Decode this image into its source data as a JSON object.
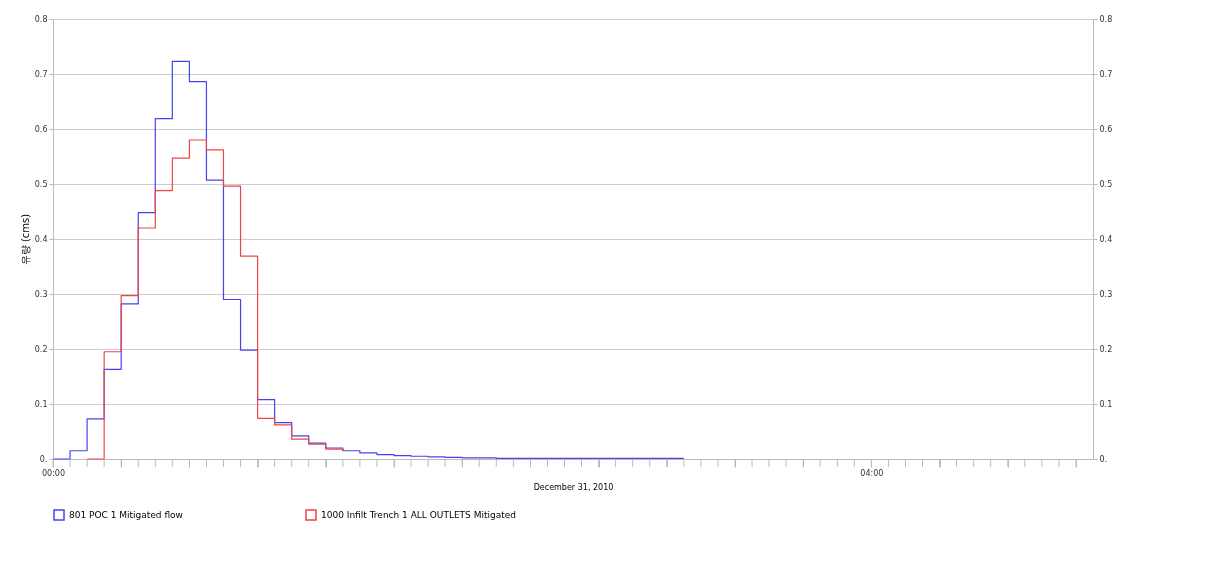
{
  "chart_data": {
    "type": "step",
    "xlabel": "December 31, 2010",
    "ylabel": "유량 (cms)",
    "xlim": [
      0,
      5.0833
    ],
    "xticks": [
      {
        "value": 0,
        "label": "00:00"
      },
      {
        "value": 0.0833,
        "label": null
      },
      {
        "value": 0.1667,
        "label": null
      },
      {
        "value": 0.25,
        "label": null
      },
      {
        "value": 0.3333,
        "label": null
      },
      {
        "value": 0.4167,
        "label": null
      },
      {
        "value": 0.5,
        "label": null
      },
      {
        "value": 0.5833,
        "label": null
      },
      {
        "value": 0.6667,
        "label": null
      },
      {
        "value": 0.75,
        "label": null
      },
      {
        "value": 0.8333,
        "label": null
      },
      {
        "value": 0.9167,
        "label": null
      },
      {
        "value": 1,
        "label": null
      },
      {
        "value": 1.0833,
        "label": null
      },
      {
        "value": 1.1667,
        "label": null
      },
      {
        "value": 1.25,
        "label": null
      },
      {
        "value": 1.3333,
        "label": null
      },
      {
        "value": 1.4167,
        "label": null
      },
      {
        "value": 1.5,
        "label": null
      },
      {
        "value": 1.5833,
        "label": null
      },
      {
        "value": 1.6667,
        "label": null
      },
      {
        "value": 1.75,
        "label": null
      },
      {
        "value": 1.8333,
        "label": null
      },
      {
        "value": 1.9167,
        "label": null
      },
      {
        "value": 2,
        "label": null
      },
      {
        "value": 2.0833,
        "label": null
      },
      {
        "value": 2.1667,
        "label": null
      },
      {
        "value": 2.25,
        "label": null
      },
      {
        "value": 2.3333,
        "label": null
      },
      {
        "value": 2.4167,
        "label": null
      },
      {
        "value": 2.5,
        "label": null
      },
      {
        "value": 2.5833,
        "label": null
      },
      {
        "value": 2.6667,
        "label": null
      },
      {
        "value": 2.75,
        "label": null
      },
      {
        "value": 2.8333,
        "label": null
      },
      {
        "value": 2.9167,
        "label": null
      },
      {
        "value": 3,
        "label": null
      },
      {
        "value": 3.0833,
        "label": null
      },
      {
        "value": 3.1667,
        "label": null
      },
      {
        "value": 3.25,
        "label": null
      },
      {
        "value": 3.3333,
        "label": null
      },
      {
        "value": 3.4167,
        "label": null
      },
      {
        "value": 3.5,
        "label": null
      },
      {
        "value": 3.5833,
        "label": null
      },
      {
        "value": 3.6667,
        "label": null
      },
      {
        "value": 3.75,
        "label": null
      },
      {
        "value": 3.8333,
        "label": null
      },
      {
        "value": 3.9167,
        "label": null
      },
      {
        "value": 4,
        "label": "04:00"
      },
      {
        "value": 4.0833,
        "label": null
      },
      {
        "value": 4.1667,
        "label": null
      },
      {
        "value": 4.25,
        "label": null
      },
      {
        "value": 4.3333,
        "label": null
      },
      {
        "value": 4.4167,
        "label": null
      },
      {
        "value": 4.5,
        "label": null
      },
      {
        "value": 4.5833,
        "label": null
      },
      {
        "value": 4.6667,
        "label": null
      },
      {
        "value": 4.75,
        "label": null
      },
      {
        "value": 4.8333,
        "label": null
      },
      {
        "value": 4.9167,
        "label": null
      },
      {
        "value": 5,
        "label": null
      }
    ],
    "ylim": [
      0,
      0.8
    ],
    "yticks": [
      {
        "value": 0,
        "label": "0."
      },
      0.1,
      0.2,
      0.3,
      0.4,
      0.5,
      0.6,
      0.7,
      0.8
    ],
    "y2lim": [
      0,
      0.8
    ],
    "y2ticks": [
      {
        "value": 0,
        "label": "0."
      },
      0.1,
      0.2,
      0.3,
      0.4,
      0.5,
      0.6,
      0.7,
      0.8
    ],
    "grid": "y",
    "legend": "bottom",
    "series": [
      {
        "name": "801 POC 1 Mitigated flow",
        "color": "#4444ee",
        "x": [
          0,
          0.0833,
          0.1667,
          0.25,
          0.3333,
          0.4167,
          0.5,
          0.5833,
          0.6667,
          0.75,
          0.8333,
          0.9167,
          1,
          1.0833,
          1.1667,
          1.25,
          1.3333,
          1.4167,
          1.5,
          1.5833,
          1.6667,
          1.75,
          1.8333,
          1.9167,
          2,
          2.0833,
          2.1667,
          2.25,
          2.3333,
          2.4167,
          2.5,
          2.5833,
          2.6667,
          2.75,
          2.8333,
          2.9167,
          3,
          3.0833
        ],
        "values": [
          0,
          0.015,
          0.073,
          0.163,
          0.282,
          0.448,
          0.619,
          0.723,
          0.686,
          0.507,
          0.29,
          0.198,
          0.108,
          0.066,
          0.042,
          0.029,
          0.02,
          0.015,
          0.011,
          0.008,
          0.006,
          0.005,
          0.004,
          0.003,
          0.002,
          0.002,
          0.001,
          0.001,
          0.001,
          0.001,
          0.001,
          0.001,
          0.001,
          0.001,
          0.001,
          0.001,
          0.001,
          0.001
        ]
      },
      {
        "name": "1000 Infilt Trench  1 ALL OUTLETS Mitigated",
        "color": "#ee4444",
        "x": [
          0.1667,
          0.25,
          0.3333,
          0.4167,
          0.5,
          0.5833,
          0.6667,
          0.75,
          0.8333,
          0.9167,
          1,
          1.0833,
          1.1667,
          1.25,
          1.3333,
          1.4167
        ],
        "values": [
          0,
          0.195,
          0.297,
          0.42,
          0.488,
          0.547,
          0.58,
          0.562,
          0.496,
          0.369,
          0.074,
          0.062,
          0.036,
          0.027,
          0.018,
          0.015
        ]
      }
    ]
  }
}
